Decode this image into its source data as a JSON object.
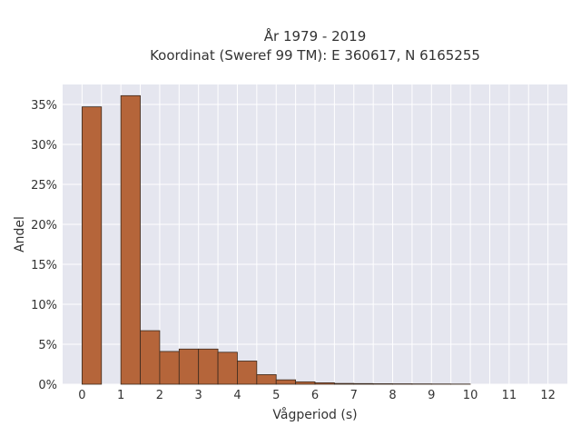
{
  "chart_data": {
    "type": "bar",
    "title_lines": [
      "År 1979 - 2019",
      "Koordinat (Sweref 99 TM): E 360617, N 6165255"
    ],
    "xlabel": "Vågperiod (s)",
    "ylabel": "Andel",
    "xlim": [
      -0.5,
      12.5
    ],
    "ylim": [
      0,
      37.5
    ],
    "x_ticks": [
      0,
      1,
      2,
      3,
      4,
      5,
      6,
      7,
      8,
      9,
      10,
      11,
      12
    ],
    "y_ticks": [
      0,
      5,
      10,
      15,
      20,
      25,
      30,
      35
    ],
    "y_tick_suffix": "%",
    "bin_width": 0.5,
    "bins": [
      {
        "start": 0.0,
        "value": 34.7
      },
      {
        "start": 1.0,
        "value": 36.1
      },
      {
        "start": 1.5,
        "value": 6.7
      },
      {
        "start": 2.0,
        "value": 4.1
      },
      {
        "start": 2.5,
        "value": 4.4
      },
      {
        "start": 3.0,
        "value": 4.4
      },
      {
        "start": 3.5,
        "value": 4.0
      },
      {
        "start": 4.0,
        "value": 2.9
      },
      {
        "start": 4.5,
        "value": 1.2
      },
      {
        "start": 5.0,
        "value": 0.55
      },
      {
        "start": 5.5,
        "value": 0.3
      },
      {
        "start": 6.0,
        "value": 0.18
      },
      {
        "start": 6.5,
        "value": 0.1
      },
      {
        "start": 7.0,
        "value": 0.08
      },
      {
        "start": 7.5,
        "value": 0.06
      },
      {
        "start": 8.0,
        "value": 0.05
      },
      {
        "start": 8.5,
        "value": 0.04
      },
      {
        "start": 9.0,
        "value": 0.03
      },
      {
        "start": 9.5,
        "value": 0.02
      }
    ],
    "grid": true,
    "colors": {
      "bar_fill": "#b5653a",
      "bar_stroke": "#3b2a1e",
      "plot_bg": "#e5e6ef",
      "grid": "#ffffff"
    }
  }
}
